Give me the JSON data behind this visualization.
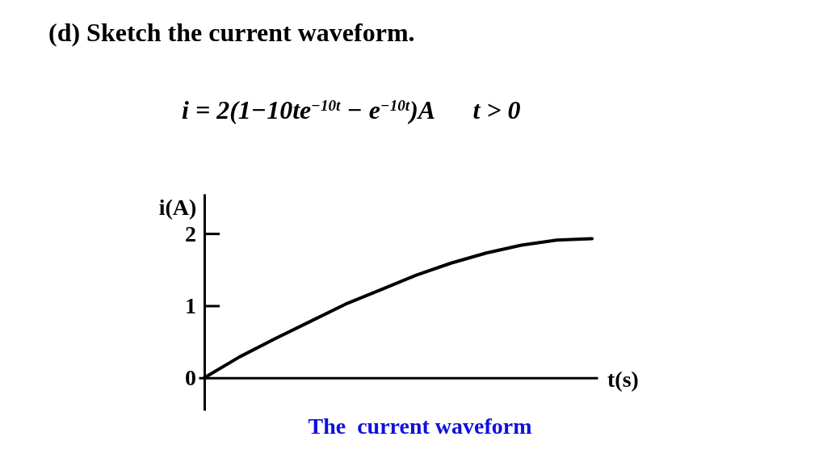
{
  "chart_data": {
    "type": "line",
    "title": "(d) Sketch the current waveform.",
    "annotations": [
      "i = 2(1−10te$^{−10t}$ − e$^{−10t}$)A      t > 0",
      "The  current waveform"
    ],
    "xlabel": "t(s)",
    "ylabel": "i(A)",
    "categories": [
      null,
      null,
      null,
      null,
      null,
      null,
      null,
      null,
      null,
      null,
      null,
      null
    ],
    "series": [
      {
        "color": "#000000",
        "values": [
          0,
          0.29,
          0.54,
          0.78,
          1.02,
          1.22,
          1.42,
          1.59,
          1.73,
          1.84,
          1.91,
          1.93
        ]
      }
    ],
    "ylim": [
      -0.45,
      2.55
    ],
    "yticks": [
      0,
      1,
      2
    ],
    "tick_labels": "y",
    "marker": "none",
    "line_style": "solid"
  }
}
